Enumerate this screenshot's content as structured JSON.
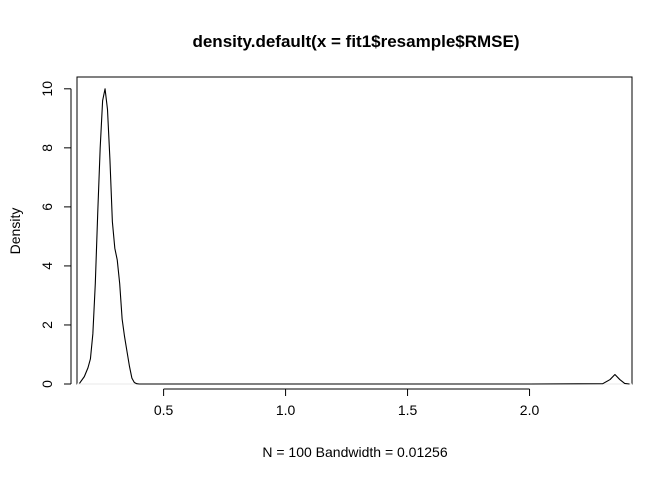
{
  "chart_data": {
    "type": "line",
    "title": "density.default(x = fit1$resample$RMSE)",
    "xlabel": "N = 100   Bandwidth = 0.01256",
    "ylabel": "Density",
    "xlim": [
      0.145,
      2.42
    ],
    "ylim": [
      0,
      10.4
    ],
    "xticks": [
      0.5,
      1.0,
      1.5,
      2.0
    ],
    "xtick_labels": [
      "0.5",
      "1.0",
      "1.5",
      "2.0"
    ],
    "yticks": [
      0,
      2,
      4,
      6,
      8,
      10
    ],
    "ytick_labels": [
      "0",
      "2",
      "4",
      "6",
      "8",
      "10"
    ],
    "grid": false,
    "series": [
      {
        "x": [
          0.155,
          0.175,
          0.19,
          0.2,
          0.21,
          0.22,
          0.23,
          0.24,
          0.25,
          0.26,
          0.27,
          0.28,
          0.29,
          0.3,
          0.31,
          0.32,
          0.33,
          0.34,
          0.35,
          0.36,
          0.37,
          0.38,
          0.39,
          0.4,
          0.41,
          0.43,
          0.5,
          1.0,
          1.5,
          2.0,
          2.3,
          2.33,
          2.35,
          2.37,
          2.39,
          2.41
        ],
        "y": [
          0.02,
          0.25,
          0.55,
          0.85,
          1.7,
          3.4,
          5.8,
          8.0,
          9.6,
          10.0,
          9.3,
          7.6,
          5.5,
          4.6,
          4.2,
          3.4,
          2.2,
          1.6,
          1.1,
          0.6,
          0.2,
          0.05,
          0.01,
          0.0,
          0.0,
          0.0,
          0.0,
          0.0,
          0.0,
          0.0,
          0.01,
          0.15,
          0.32,
          0.15,
          0.02,
          0.0
        ]
      }
    ]
  }
}
